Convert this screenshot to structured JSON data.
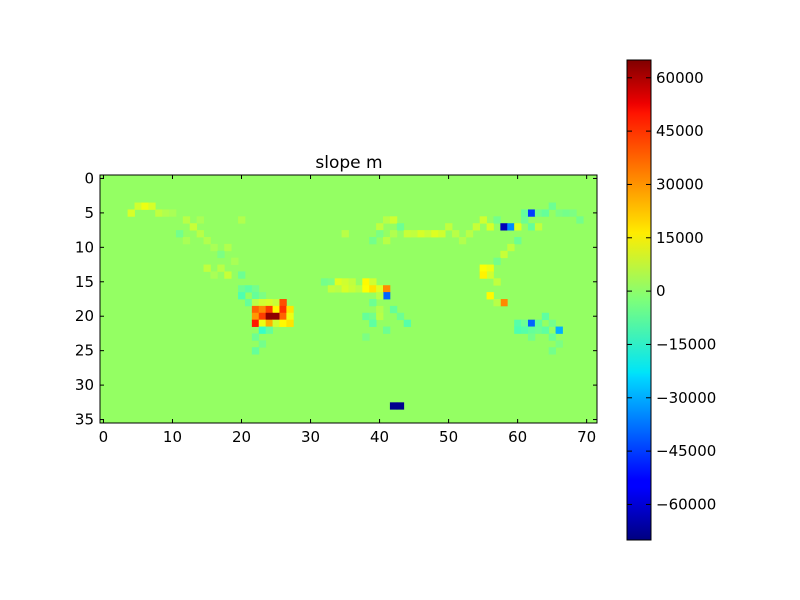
{
  "chart_data": {
    "type": "heatmap",
    "title": "slope m",
    "xlabel": "",
    "ylabel": "",
    "grid_cols": 72,
    "grid_rows": 36,
    "xlim": [
      -0.5,
      71.5
    ],
    "ylim": [
      35.5,
      -0.5
    ],
    "x_ticks": [
      0,
      10,
      20,
      30,
      40,
      50,
      60,
      70
    ],
    "y_ticks": [
      0,
      5,
      10,
      15,
      20,
      25,
      30,
      35
    ],
    "background_value": 0,
    "colorbar": {
      "colormap": "jet",
      "vmin": -70000,
      "vmax": 65000,
      "ticks": [
        60000,
        45000,
        30000,
        15000,
        0,
        -15000,
        -30000,
        -45000,
        -60000
      ],
      "tick_labels": [
        "60000",
        "45000",
        "30000",
        "15000",
        "0",
        "−15000",
        "−30000",
        "−45000",
        "−60000"
      ]
    },
    "cells": [
      {
        "x": 4,
        "y": 5,
        "value": 9000
      },
      {
        "x": 5,
        "y": 4,
        "value": 8000
      },
      {
        "x": 6,
        "y": 4,
        "value": 12000
      },
      {
        "x": 7,
        "y": 4,
        "value": 9000
      },
      {
        "x": 8,
        "y": 5,
        "value": 6000
      },
      {
        "x": 9,
        "y": 5,
        "value": 4000
      },
      {
        "x": 10,
        "y": 5,
        "value": 3000
      },
      {
        "x": 12,
        "y": 6,
        "value": 5000
      },
      {
        "x": 13,
        "y": 7,
        "value": 7000
      },
      {
        "x": 11,
        "y": 8,
        "value": -4000
      },
      {
        "x": 12,
        "y": 9,
        "value": 3000
      },
      {
        "x": 14,
        "y": 8,
        "value": 5000
      },
      {
        "x": 15,
        "y": 9,
        "value": 4000
      },
      {
        "x": 16,
        "y": 10,
        "value": 3000
      },
      {
        "x": 17,
        "y": 11,
        "value": -3000
      },
      {
        "x": 18,
        "y": 10,
        "value": 4000
      },
      {
        "x": 15,
        "y": 13,
        "value": 6000
      },
      {
        "x": 16,
        "y": 14,
        "value": 3000
      },
      {
        "x": 17,
        "y": 13,
        "value": 5000
      },
      {
        "x": 18,
        "y": 14,
        "value": 7000
      },
      {
        "x": 19,
        "y": 12,
        "value": 3000
      },
      {
        "x": 20,
        "y": 14,
        "value": -5000
      },
      {
        "x": 20,
        "y": 6,
        "value": 4000
      },
      {
        "x": 14,
        "y": 6,
        "value": 3000
      },
      {
        "x": 20,
        "y": 16,
        "value": -5000
      },
      {
        "x": 21,
        "y": 16,
        "value": -7000
      },
      {
        "x": 22,
        "y": 16,
        "value": -4000
      },
      {
        "x": 20,
        "y": 17,
        "value": -9000
      },
      {
        "x": 22,
        "y": 17,
        "value": -6000
      },
      {
        "x": 23,
        "y": 17,
        "value": -3000
      },
      {
        "x": 21,
        "y": 18,
        "value": -6000
      },
      {
        "x": 22,
        "y": 18,
        "value": 5000
      },
      {
        "x": 23,
        "y": 18,
        "value": 8000
      },
      {
        "x": 24,
        "y": 18,
        "value": 9000
      },
      {
        "x": 25,
        "y": 18,
        "value": 7000
      },
      {
        "x": 26,
        "y": 18,
        "value": 38000
      },
      {
        "x": 22,
        "y": 19,
        "value": 35000
      },
      {
        "x": 23,
        "y": 19,
        "value": 30000
      },
      {
        "x": 24,
        "y": 19,
        "value": 40000
      },
      {
        "x": 25,
        "y": 19,
        "value": 15000
      },
      {
        "x": 26,
        "y": 19,
        "value": 42000
      },
      {
        "x": 27,
        "y": 19,
        "value": 18000
      },
      {
        "x": 22,
        "y": 20,
        "value": 28000
      },
      {
        "x": 23,
        "y": 20,
        "value": 40000
      },
      {
        "x": 24,
        "y": 20,
        "value": 63000
      },
      {
        "x": 25,
        "y": 20,
        "value": 63000
      },
      {
        "x": 26,
        "y": 20,
        "value": 35000
      },
      {
        "x": 27,
        "y": 20,
        "value": 12000
      },
      {
        "x": 22,
        "y": 21,
        "value": 45000
      },
      {
        "x": 23,
        "y": 21,
        "value": 12000
      },
      {
        "x": 24,
        "y": 21,
        "value": 25000
      },
      {
        "x": 25,
        "y": 21,
        "value": 8000
      },
      {
        "x": 26,
        "y": 21,
        "value": 15000
      },
      {
        "x": 27,
        "y": 21,
        "value": 18000
      },
      {
        "x": 23,
        "y": 22,
        "value": -12000
      },
      {
        "x": 24,
        "y": 22,
        "value": -6000
      },
      {
        "x": 22,
        "y": 23,
        "value": -5000
      },
      {
        "x": 23,
        "y": 24,
        "value": -4000
      },
      {
        "x": 22,
        "y": 25,
        "value": -6000
      },
      {
        "x": 35,
        "y": 8,
        "value": 5000
      },
      {
        "x": 32,
        "y": 15,
        "value": -4000
      },
      {
        "x": 33,
        "y": 15,
        "value": -3000
      },
      {
        "x": 34,
        "y": 15,
        "value": 10000
      },
      {
        "x": 35,
        "y": 15,
        "value": 8000
      },
      {
        "x": 36,
        "y": 15,
        "value": 6000
      },
      {
        "x": 33,
        "y": 16,
        "value": 6000
      },
      {
        "x": 34,
        "y": 16,
        "value": 5000
      },
      {
        "x": 35,
        "y": 16,
        "value": 9000
      },
      {
        "x": 36,
        "y": 16,
        "value": 7000
      },
      {
        "x": 37,
        "y": 16,
        "value": 5000
      },
      {
        "x": 38,
        "y": 15,
        "value": 15000
      },
      {
        "x": 39,
        "y": 15,
        "value": 8000
      },
      {
        "x": 38,
        "y": 16,
        "value": 14000
      },
      {
        "x": 39,
        "y": 16,
        "value": 18000
      },
      {
        "x": 40,
        "y": 16,
        "value": 10000
      },
      {
        "x": 41,
        "y": 16,
        "value": 30000
      },
      {
        "x": 41,
        "y": 17,
        "value": -40000
      },
      {
        "x": 40,
        "y": 17,
        "value": 5000
      },
      {
        "x": 39,
        "y": 18,
        "value": -5000
      },
      {
        "x": 40,
        "y": 19,
        "value": 4000
      },
      {
        "x": 38,
        "y": 20,
        "value": -6000
      },
      {
        "x": 39,
        "y": 20,
        "value": -4000
      },
      {
        "x": 40,
        "y": 20,
        "value": 5000
      },
      {
        "x": 42,
        "y": 19,
        "value": -6000
      },
      {
        "x": 43,
        "y": 20,
        "value": -5000
      },
      {
        "x": 44,
        "y": 21,
        "value": -8000
      },
      {
        "x": 39,
        "y": 21,
        "value": -7000
      },
      {
        "x": 41,
        "y": 22,
        "value": -5000
      },
      {
        "x": 38,
        "y": 23,
        "value": -3000
      },
      {
        "x": 40,
        "y": 7,
        "value": 6000
      },
      {
        "x": 41,
        "y": 6,
        "value": 5000
      },
      {
        "x": 42,
        "y": 6,
        "value": 8000
      },
      {
        "x": 43,
        "y": 7,
        "value": -5000
      },
      {
        "x": 42,
        "y": 8,
        "value": 4000
      },
      {
        "x": 40,
        "y": 8,
        "value": -3000
      },
      {
        "x": 39,
        "y": 9,
        "value": -4000
      },
      {
        "x": 41,
        "y": 9,
        "value": 5000
      },
      {
        "x": 44,
        "y": 8,
        "value": 7000
      },
      {
        "x": 45,
        "y": 8,
        "value": 6000
      },
      {
        "x": 46,
        "y": 8,
        "value": 9000
      },
      {
        "x": 47,
        "y": 8,
        "value": 7000
      },
      {
        "x": 48,
        "y": 8,
        "value": 10000
      },
      {
        "x": 49,
        "y": 8,
        "value": 8000
      },
      {
        "x": 50,
        "y": 7,
        "value": 6000
      },
      {
        "x": 51,
        "y": 8,
        "value": 5000
      },
      {
        "x": 52,
        "y": 9,
        "value": 4000
      },
      {
        "x": 53,
        "y": 8,
        "value": 5000
      },
      {
        "x": 54,
        "y": 7,
        "value": 7000
      },
      {
        "x": 55,
        "y": 6,
        "value": 8000
      },
      {
        "x": 56,
        "y": 7,
        "value": 9000
      },
      {
        "x": 57,
        "y": 6,
        "value": -4000
      },
      {
        "x": 58,
        "y": 7,
        "value": -62000
      },
      {
        "x": 59,
        "y": 7,
        "value": -35000
      },
      {
        "x": 60,
        "y": 7,
        "value": 10000
      },
      {
        "x": 61,
        "y": 6,
        "value": -5000
      },
      {
        "x": 61,
        "y": 5,
        "value": -6000
      },
      {
        "x": 62,
        "y": 5,
        "value": -45000
      },
      {
        "x": 63,
        "y": 5,
        "value": -4000
      },
      {
        "x": 64,
        "y": 5,
        "value": -6000
      },
      {
        "x": 65,
        "y": 4,
        "value": -5000
      },
      {
        "x": 66,
        "y": 5,
        "value": -3000
      },
      {
        "x": 67,
        "y": 5,
        "value": -4000
      },
      {
        "x": 68,
        "y": 5,
        "value": -3000
      },
      {
        "x": 69,
        "y": 6,
        "value": -4000
      },
      {
        "x": 62,
        "y": 7,
        "value": -6000
      },
      {
        "x": 63,
        "y": 7,
        "value": 6000
      },
      {
        "x": 60,
        "y": 9,
        "value": -5000
      },
      {
        "x": 59,
        "y": 10,
        "value": 6000
      },
      {
        "x": 58,
        "y": 11,
        "value": 7000
      },
      {
        "x": 57,
        "y": 12,
        "value": -4000
      },
      {
        "x": 55,
        "y": 13,
        "value": 14000
      },
      {
        "x": 56,
        "y": 13,
        "value": 12000
      },
      {
        "x": 56,
        "y": 14,
        "value": 8000
      },
      {
        "x": 55,
        "y": 14,
        "value": 16000
      },
      {
        "x": 57,
        "y": 15,
        "value": 6000
      },
      {
        "x": 56,
        "y": 17,
        "value": 15000
      },
      {
        "x": 58,
        "y": 18,
        "value": 30000
      },
      {
        "x": 57,
        "y": 18,
        "value": 5000
      },
      {
        "x": 60,
        "y": 21,
        "value": -8000
      },
      {
        "x": 61,
        "y": 21,
        "value": -5000
      },
      {
        "x": 62,
        "y": 21,
        "value": -40000
      },
      {
        "x": 63,
        "y": 21,
        "value": -6000
      },
      {
        "x": 64,
        "y": 20,
        "value": -7000
      },
      {
        "x": 65,
        "y": 21,
        "value": -4000
      },
      {
        "x": 66,
        "y": 22,
        "value": -30000
      },
      {
        "x": 60,
        "y": 22,
        "value": -9000
      },
      {
        "x": 61,
        "y": 22,
        "value": -8000
      },
      {
        "x": 62,
        "y": 22,
        "value": -6000
      },
      {
        "x": 63,
        "y": 22,
        "value": -5000
      },
      {
        "x": 64,
        "y": 22,
        "value": -7000
      },
      {
        "x": 65,
        "y": 23,
        "value": -5000
      },
      {
        "x": 62,
        "y": 23,
        "value": -4000
      },
      {
        "x": 66,
        "y": 24,
        "value": -3000
      },
      {
        "x": 65,
        "y": 25,
        "value": -4000
      },
      {
        "x": 42,
        "y": 33,
        "value": -68000
      },
      {
        "x": 43,
        "y": 33,
        "value": -68000
      }
    ]
  }
}
